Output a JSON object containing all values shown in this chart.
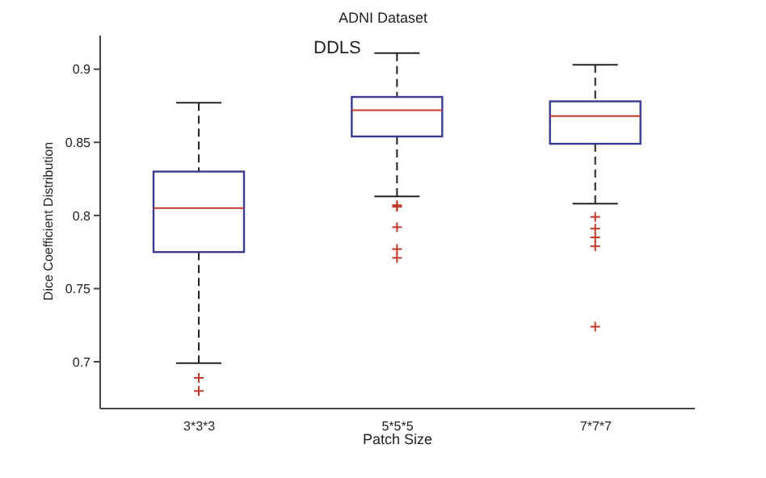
{
  "chart_data": {
    "type": "box",
    "title": "ADNI Dataset",
    "xlabel": "Patch Size",
    "ylabel": "Dice Coefficient Distribution",
    "annotations": [
      "DDLS"
    ],
    "categories": [
      "3*3*3",
      "5*5*5",
      "7*7*7"
    ],
    "series": [
      {
        "color": "#3b3b8f",
        "boxes": [
          {
            "low": 0.699,
            "q1": 0.775,
            "median": 0.805,
            "q3": 0.83,
            "high": 0.877,
            "outliers": [
              0.689,
              0.68
            ]
          },
          {
            "low": 0.813,
            "q1": 0.854,
            "median": 0.872,
            "q3": 0.881,
            "high": 0.911,
            "outliers": [
              0.807,
              0.806,
              0.792,
              0.777,
              0.771
            ]
          },
          {
            "low": 0.808,
            "q1": 0.849,
            "median": 0.868,
            "q3": 0.878,
            "high": 0.903,
            "outliers": [
              0.799,
              0.791,
              0.785,
              0.779,
              0.724
            ]
          }
        ]
      }
    ],
    "ylim": [
      0.668,
      0.923
    ],
    "yticks": [
      0.7,
      0.75,
      0.8,
      0.85,
      0.9
    ],
    "grid": false,
    "legend": false,
    "marker": "cross"
  }
}
